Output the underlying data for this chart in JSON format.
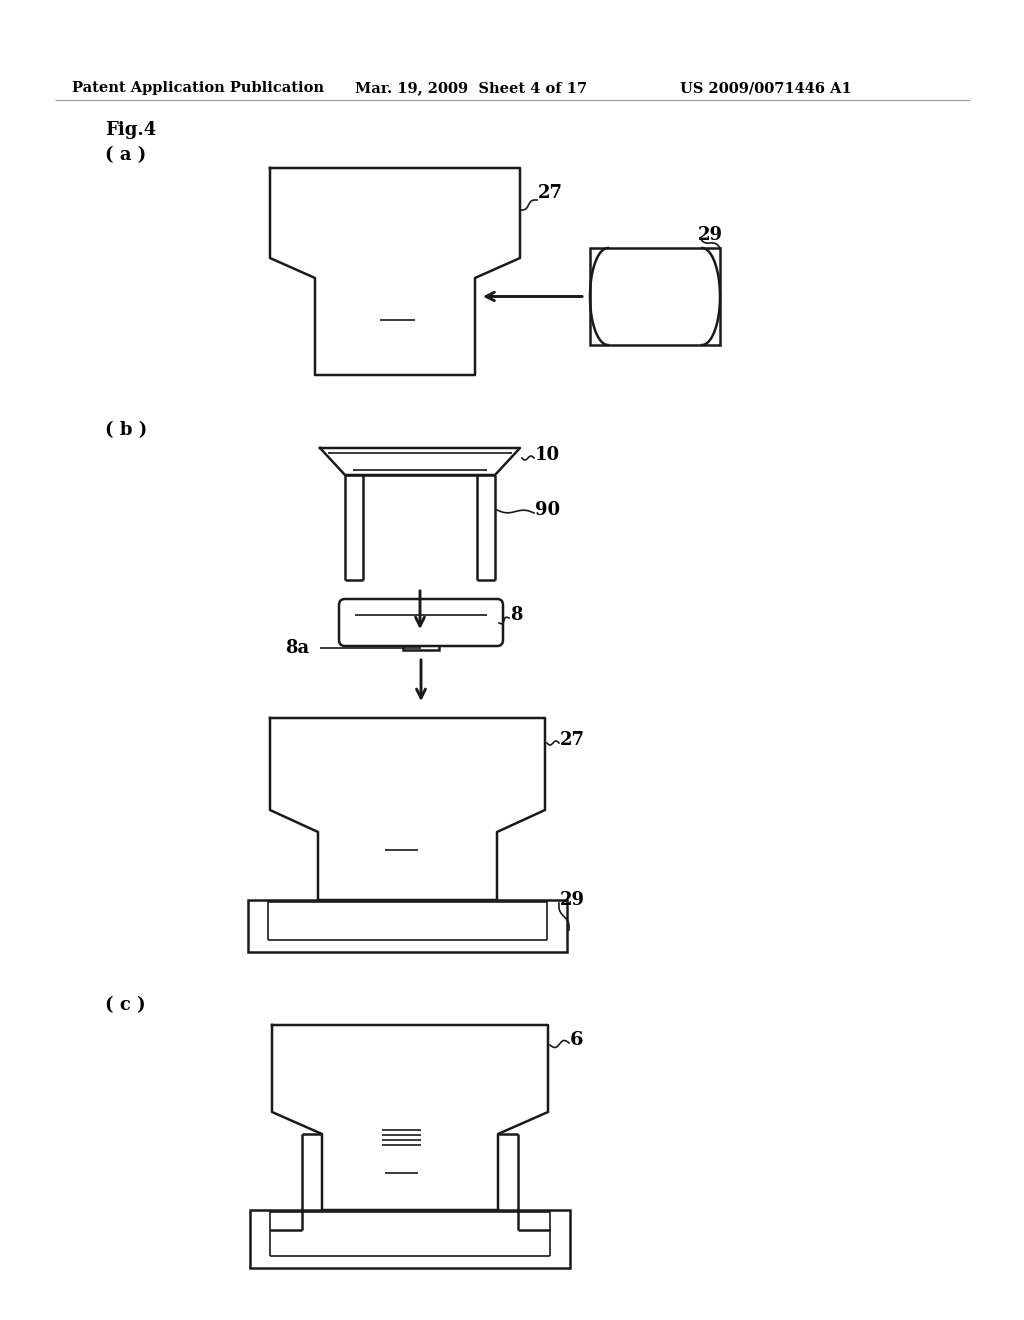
{
  "bg_color": "#ffffff",
  "lc": "#1a1a1a",
  "lw": 1.8,
  "lw_thin": 1.2,
  "header_left": "Patent Application Publication",
  "header_mid": "Mar. 19, 2009  Sheet 4 of 17",
  "header_right": "US 2009/0071446 A1",
  "fig_label": "Fig.4",
  "sub_a": "( a )",
  "sub_b": "( b )",
  "sub_c": "( c )"
}
